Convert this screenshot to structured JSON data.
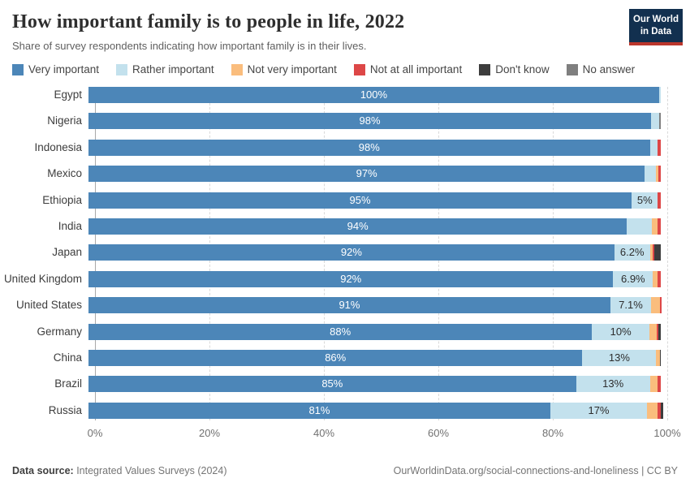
{
  "header": {
    "title": "How important family is to people in life, 2022",
    "subtitle": "Share of survey respondents indicating how important family is in their lives."
  },
  "logo": {
    "line1": "Our World",
    "line2": "in Data",
    "bg_color": "#12304f",
    "accent_color": "#bb362c"
  },
  "footer": {
    "datasource_label": "Data source:",
    "datasource_value": " Integrated Values Surveys (2024)",
    "attribution": "OurWorldinData.org/social-connections-and-loneliness | CC BY"
  },
  "chart_data": {
    "type": "bar",
    "stacked": true,
    "horizontal": true,
    "title": "How important family is to people in life, 2022",
    "xlim": [
      0,
      100
    ],
    "x_ticks": [
      "0%",
      "20%",
      "40%",
      "60%",
      "80%",
      "100%"
    ],
    "grid": "dashed-vertical",
    "legend_position": "top",
    "categories": [
      "Egypt",
      "Nigeria",
      "Indonesia",
      "Mexico",
      "Ethiopia",
      "India",
      "Japan",
      "United Kingdom",
      "United States",
      "Germany",
      "China",
      "Brazil",
      "Russia"
    ],
    "series": [
      {
        "key": "very-important",
        "name": "Very important",
        "color": "#4c86b8",
        "label_color": "#ffffff",
        "values": [
          99.7,
          98.3,
          98.1,
          97.2,
          94.9,
          94.1,
          91.9,
          91.7,
          91.2,
          88.0,
          86.3,
          85.2,
          80.7
        ],
        "value_labels": [
          "100%",
          "98%",
          "98%",
          "97%",
          "95%",
          "94%",
          "92%",
          "92%",
          "91%",
          "88%",
          "86%",
          "85%",
          "81%"
        ]
      },
      {
        "key": "rather-important",
        "name": "Rather important",
        "color": "#c3e1ed",
        "label_color": "#2d2d2d",
        "values": [
          0.3,
          1.4,
          1.3,
          1.9,
          4.6,
          4.3,
          6.2,
          6.9,
          7.1,
          10.0,
          12.9,
          12.9,
          16.9
        ],
        "value_labels": [
          "",
          "",
          "",
          "",
          "5%",
          "",
          "6.2%",
          "6.9%",
          "7.1%",
          "10%",
          "13%",
          "13%",
          "17%"
        ]
      },
      {
        "key": "not-very-important",
        "name": "Not very important",
        "color": "#fabd7d",
        "label_color": "#2d2d2d",
        "values": [
          0,
          0,
          0.1,
          0.5,
          0,
          1.0,
          0.5,
          0.9,
          1.5,
          1.3,
          0.6,
          1.4,
          1.9
        ],
        "value_labels": [
          "",
          "",
          "",
          "",
          "",
          "",
          "",
          "",
          "",
          "",
          "",
          "",
          ""
        ]
      },
      {
        "key": "not-at-all-important",
        "name": "Not at all important",
        "color": "#dd4747",
        "label_color": "#ffffff",
        "values": [
          0,
          0,
          0.5,
          0.4,
          0.5,
          0.6,
          0.3,
          0.5,
          0.3,
          0.3,
          0,
          0.5,
          0.5
        ],
        "value_labels": [
          "",
          "",
          "",
          "",
          "",
          "",
          "",
          "",
          "",
          "",
          "",
          "",
          ""
        ]
      },
      {
        "key": "dont-know",
        "name": "Don't know",
        "color": "#3d3d3d",
        "label_color": "#ffffff",
        "values": [
          0,
          0,
          0,
          0,
          0,
          0,
          1.1,
          0,
          0,
          0.4,
          0.2,
          0,
          0.5
        ],
        "value_labels": [
          "",
          "",
          "",
          "",
          "",
          "",
          "",
          "",
          "",
          "",
          "",
          "",
          ""
        ]
      },
      {
        "key": "no-answer",
        "name": "No answer",
        "color": "#7f7f7f",
        "label_color": "#ffffff",
        "values": [
          0,
          0.3,
          0,
          0,
          0,
          0,
          0,
          0,
          0,
          0,
          0,
          0,
          0
        ],
        "value_labels": [
          "",
          "",
          "",
          "",
          "",
          "",
          "",
          "",
          "",
          "",
          "",
          "",
          ""
        ]
      }
    ]
  }
}
